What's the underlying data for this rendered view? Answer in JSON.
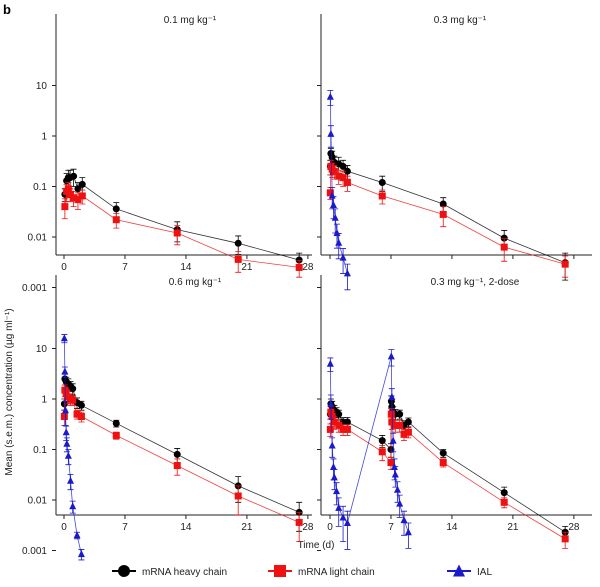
{
  "panel_label": "b",
  "y_axis_label": "Mean (s.e.m.) concentration (µg ml⁻¹)",
  "x_axis_label": "Time (d)",
  "legend": [
    {
      "name": "mRNA heavy chain",
      "color": "#000000",
      "marker": "circle"
    },
    {
      "name": "mRNA light chain",
      "color": "#ee1111",
      "marker": "square"
    },
    {
      "name": "IAL",
      "color": "#1a1acc",
      "marker": "triangle"
    }
  ],
  "chart_data": [
    {
      "type": "line",
      "title": "0.1 mg kg⁻¹",
      "xlim": [
        0,
        28
      ],
      "ylim": [
        0.001,
        10
      ],
      "yscale": "log",
      "xticks": [
        "0",
        "7",
        "14",
        "21",
        "28"
      ],
      "yticks": [
        "0.001",
        "0.01",
        "0.1",
        "1",
        "10"
      ],
      "series": [
        {
          "name": "mRNA heavy chain",
          "points": [
            [
              0.1,
              0.07,
              0.02
            ],
            [
              0.3,
              0.13,
              0.05
            ],
            [
              0.5,
              0.15,
              0.06
            ],
            [
              0.7,
              0.15,
              0.06
            ],
            [
              1.1,
              0.16,
              0.06
            ],
            [
              1.6,
              0.09,
              0.03
            ],
            [
              2.1,
              0.11,
              0.04
            ],
            [
              6,
              0.036,
              0.012
            ],
            [
              13,
              0.014,
              0.006
            ],
            [
              20,
              0.0075,
              0.003
            ],
            [
              27,
              0.0035,
              0.0013
            ]
          ]
        },
        {
          "name": "mRNA light chain",
          "points": [
            [
              0.1,
              0.04,
              0.017
            ],
            [
              0.3,
              0.08,
              0.03
            ],
            [
              0.5,
              0.09,
              0.03
            ],
            [
              0.7,
              0.07,
              0.02
            ],
            [
              1.1,
              0.06,
              0.02
            ],
            [
              1.6,
              0.055,
              0.02
            ],
            [
              2.1,
              0.065,
              0.02
            ],
            [
              6,
              0.022,
              0.007
            ],
            [
              13,
              0.012,
              0.005
            ],
            [
              20,
              0.0036,
              0.0016
            ],
            [
              27,
              0.0025,
              0.0009
            ]
          ]
        }
      ]
    },
    {
      "type": "line",
      "title": "0.3 mg kg⁻¹",
      "xlim": [
        0,
        28
      ],
      "ylim": [
        0.001,
        10
      ],
      "yscale": "log",
      "series": [
        {
          "name": "mRNA heavy chain",
          "points": [
            [
              0.04,
              0.25,
              0.08
            ],
            [
              0.1,
              0.45,
              0.12
            ],
            [
              0.25,
              0.38,
              0.12
            ],
            [
              0.5,
              0.3,
              0.1
            ],
            [
              1,
              0.28,
              0.1
            ],
            [
              1.5,
              0.25,
              0.08
            ],
            [
              2,
              0.2,
              0.06
            ],
            [
              6,
              0.12,
              0.04
            ],
            [
              13,
              0.045,
              0.015
            ],
            [
              20,
              0.0095,
              0.004
            ],
            [
              27,
              0.0031,
              0.0017
            ]
          ]
        },
        {
          "name": "mRNA light chain",
          "points": [
            [
              0.04,
              0.075,
              0.02
            ],
            [
              0.1,
              0.25,
              0.08
            ],
            [
              0.25,
              0.22,
              0.07
            ],
            [
              0.5,
              0.2,
              0.06
            ],
            [
              1,
              0.16,
              0.05
            ],
            [
              1.5,
              0.15,
              0.05
            ],
            [
              2,
              0.12,
              0.04
            ],
            [
              6,
              0.065,
              0.02
            ],
            [
              13,
              0.028,
              0.012
            ],
            [
              20,
              0.0063,
              0.003
            ],
            [
              27,
              0.0029,
              0.0013
            ]
          ]
        },
        {
          "name": "IAL",
          "points": [
            [
              0.04,
              6,
              2
            ],
            [
              0.1,
              1.1,
              0.5
            ],
            [
              0.25,
              0.066,
              0.03
            ],
            [
              0.4,
              0.043,
              0.02
            ],
            [
              0.6,
              0.024,
              0.012
            ],
            [
              0.8,
              0.012,
              0.006
            ],
            [
              1,
              0.0077,
              0.004
            ],
            [
              1.5,
              0.0039,
              0.002
            ],
            [
              2,
              0.0019,
              0.001
            ]
          ]
        }
      ]
    },
    {
      "type": "line",
      "title": "0.6 mg kg⁻¹",
      "xlim": [
        0,
        28
      ],
      "ylim": [
        0.001,
        10
      ],
      "yscale": "log",
      "xticks": [
        "0",
        "7",
        "14",
        "21",
        "28"
      ],
      "yticks": [
        "0.001",
        "0.01",
        "0.1",
        "1",
        "10"
      ],
      "series": [
        {
          "name": "mRNA heavy chain",
          "points": [
            [
              0.04,
              0.8,
              0.2
            ],
            [
              0.1,
              2.5,
              0.6
            ],
            [
              0.25,
              2.2,
              0.5
            ],
            [
              0.5,
              2,
              0.5
            ],
            [
              0.75,
              1.8,
              0.4
            ],
            [
              1,
              1.6,
              0.4
            ],
            [
              1.5,
              0.85,
              0.2
            ],
            [
              2,
              0.75,
              0.15
            ],
            [
              6,
              0.33,
              0.05
            ],
            [
              13,
              0.08,
              0.025
            ],
            [
              20,
              0.019,
              0.01
            ],
            [
              27,
              0.0057,
              0.0033
            ]
          ]
        },
        {
          "name": "mRNA light chain",
          "points": [
            [
              0.04,
              0.45,
              0.15
            ],
            [
              0.1,
              1.5,
              0.4
            ],
            [
              0.25,
              1.3,
              0.3
            ],
            [
              0.5,
              1.1,
              0.3
            ],
            [
              0.75,
              1,
              0.25
            ],
            [
              1,
              0.95,
              0.2
            ],
            [
              1.5,
              0.5,
              0.1
            ],
            [
              2,
              0.45,
              0.1
            ],
            [
              6,
              0.19,
              0.03
            ],
            [
              13,
              0.048,
              0.017
            ],
            [
              20,
              0.012,
              0.007
            ],
            [
              27,
              0.0036,
              0.0021
            ]
          ]
        },
        {
          "name": "IAL",
          "points": [
            [
              0.04,
              16,
              3
            ],
            [
              0.1,
              3.5,
              0.8
            ],
            [
              0.17,
              0.6,
              0.3
            ],
            [
              0.25,
              0.22,
              0.07
            ],
            [
              0.33,
              0.13,
              0.04
            ],
            [
              0.5,
              0.075,
              0.025
            ],
            [
              0.75,
              0.024,
              0.008
            ],
            [
              1,
              0.0075,
              0.002
            ],
            [
              1.5,
              0.002,
              0.0003
            ],
            [
              2,
              0.00085,
              0.0002
            ]
          ]
        }
      ]
    },
    {
      "type": "line",
      "title": "0.3 mg kg⁻¹, 2-dose",
      "xlim": [
        0,
        28
      ],
      "ylim": [
        0.001,
        10
      ],
      "yscale": "log",
      "xticks": [
        "0",
        "7",
        "14",
        "21",
        "28"
      ],
      "series": [
        {
          "name": "mRNA heavy chain",
          "points": [
            [
              0.04,
              0.5,
              0.1
            ],
            [
              0.1,
              0.8,
              0.2
            ],
            [
              0.25,
              0.7,
              0.2
            ],
            [
              0.5,
              0.6,
              0.15
            ],
            [
              0.75,
              0.55,
              0.12
            ],
            [
              1,
              0.5,
              0.1
            ],
            [
              1.5,
              0.35,
              0.08
            ],
            [
              2,
              0.35,
              0.08
            ],
            [
              6,
              0.15,
              0.04
            ],
            [
              7,
              0.1,
              0.03
            ],
            [
              7.04,
              0.9,
              0.25
            ],
            [
              7.1,
              0.7,
              0.2
            ],
            [
              7.25,
              0.55,
              0.15
            ],
            [
              7.5,
              0.5,
              0.12
            ],
            [
              8,
              0.5,
              0.1
            ],
            [
              8.5,
              0.3,
              0.07
            ],
            [
              9,
              0.35,
              0.07
            ],
            [
              13,
              0.085,
              0.015
            ],
            [
              20,
              0.014,
              0.004
            ],
            [
              27,
              0.0023,
              0.0007
            ]
          ]
        },
        {
          "name": "mRNA light chain",
          "points": [
            [
              0.04,
              0.25,
              0.07
            ],
            [
              0.1,
              0.55,
              0.15
            ],
            [
              0.25,
              0.45,
              0.12
            ],
            [
              0.5,
              0.35,
              0.1
            ],
            [
              1,
              0.3,
              0.08
            ],
            [
              1.5,
              0.25,
              0.06
            ],
            [
              2,
              0.25,
              0.06
            ],
            [
              6,
              0.09,
              0.03
            ],
            [
              7,
              0.055,
              0.015
            ],
            [
              7.04,
              0.5,
              0.15
            ],
            [
              7.1,
              0.35,
              0.1
            ],
            [
              7.5,
              0.3,
              0.08
            ],
            [
              8,
              0.3,
              0.08
            ],
            [
              8.5,
              0.2,
              0.05
            ],
            [
              9,
              0.22,
              0.05
            ],
            [
              13,
              0.055,
              0.01
            ],
            [
              20,
              0.009,
              0.002
            ],
            [
              27,
              0.0017,
              0.0006
            ]
          ]
        },
        {
          "name": "IAL",
          "points": [
            [
              0.04,
              5,
              1.5
            ],
            [
              0.1,
              0.8,
              0.4
            ],
            [
              0.25,
              0.12,
              0.05
            ],
            [
              0.4,
              0.045,
              0.02
            ],
            [
              0.5,
              0.028,
              0.012
            ],
            [
              0.75,
              0.015,
              0.007
            ],
            [
              1,
              0.007,
              0.004
            ],
            [
              1.5,
              0.0045,
              0.003
            ],
            [
              2,
              0.0035,
              0.0025
            ],
            [
              7.04,
              7,
              2.5
            ],
            [
              7.1,
              1.1,
              0.5
            ],
            [
              7.25,
              0.15,
              0.06
            ],
            [
              7.4,
              0.045,
              0.02
            ],
            [
              7.5,
              0.032,
              0.014
            ],
            [
              7.75,
              0.016,
              0.007
            ],
            [
              8,
              0.0085,
              0.004
            ],
            [
              8.5,
              0.004,
              0.002
            ],
            [
              9,
              0.0023,
              0.0012
            ]
          ]
        }
      ]
    }
  ]
}
